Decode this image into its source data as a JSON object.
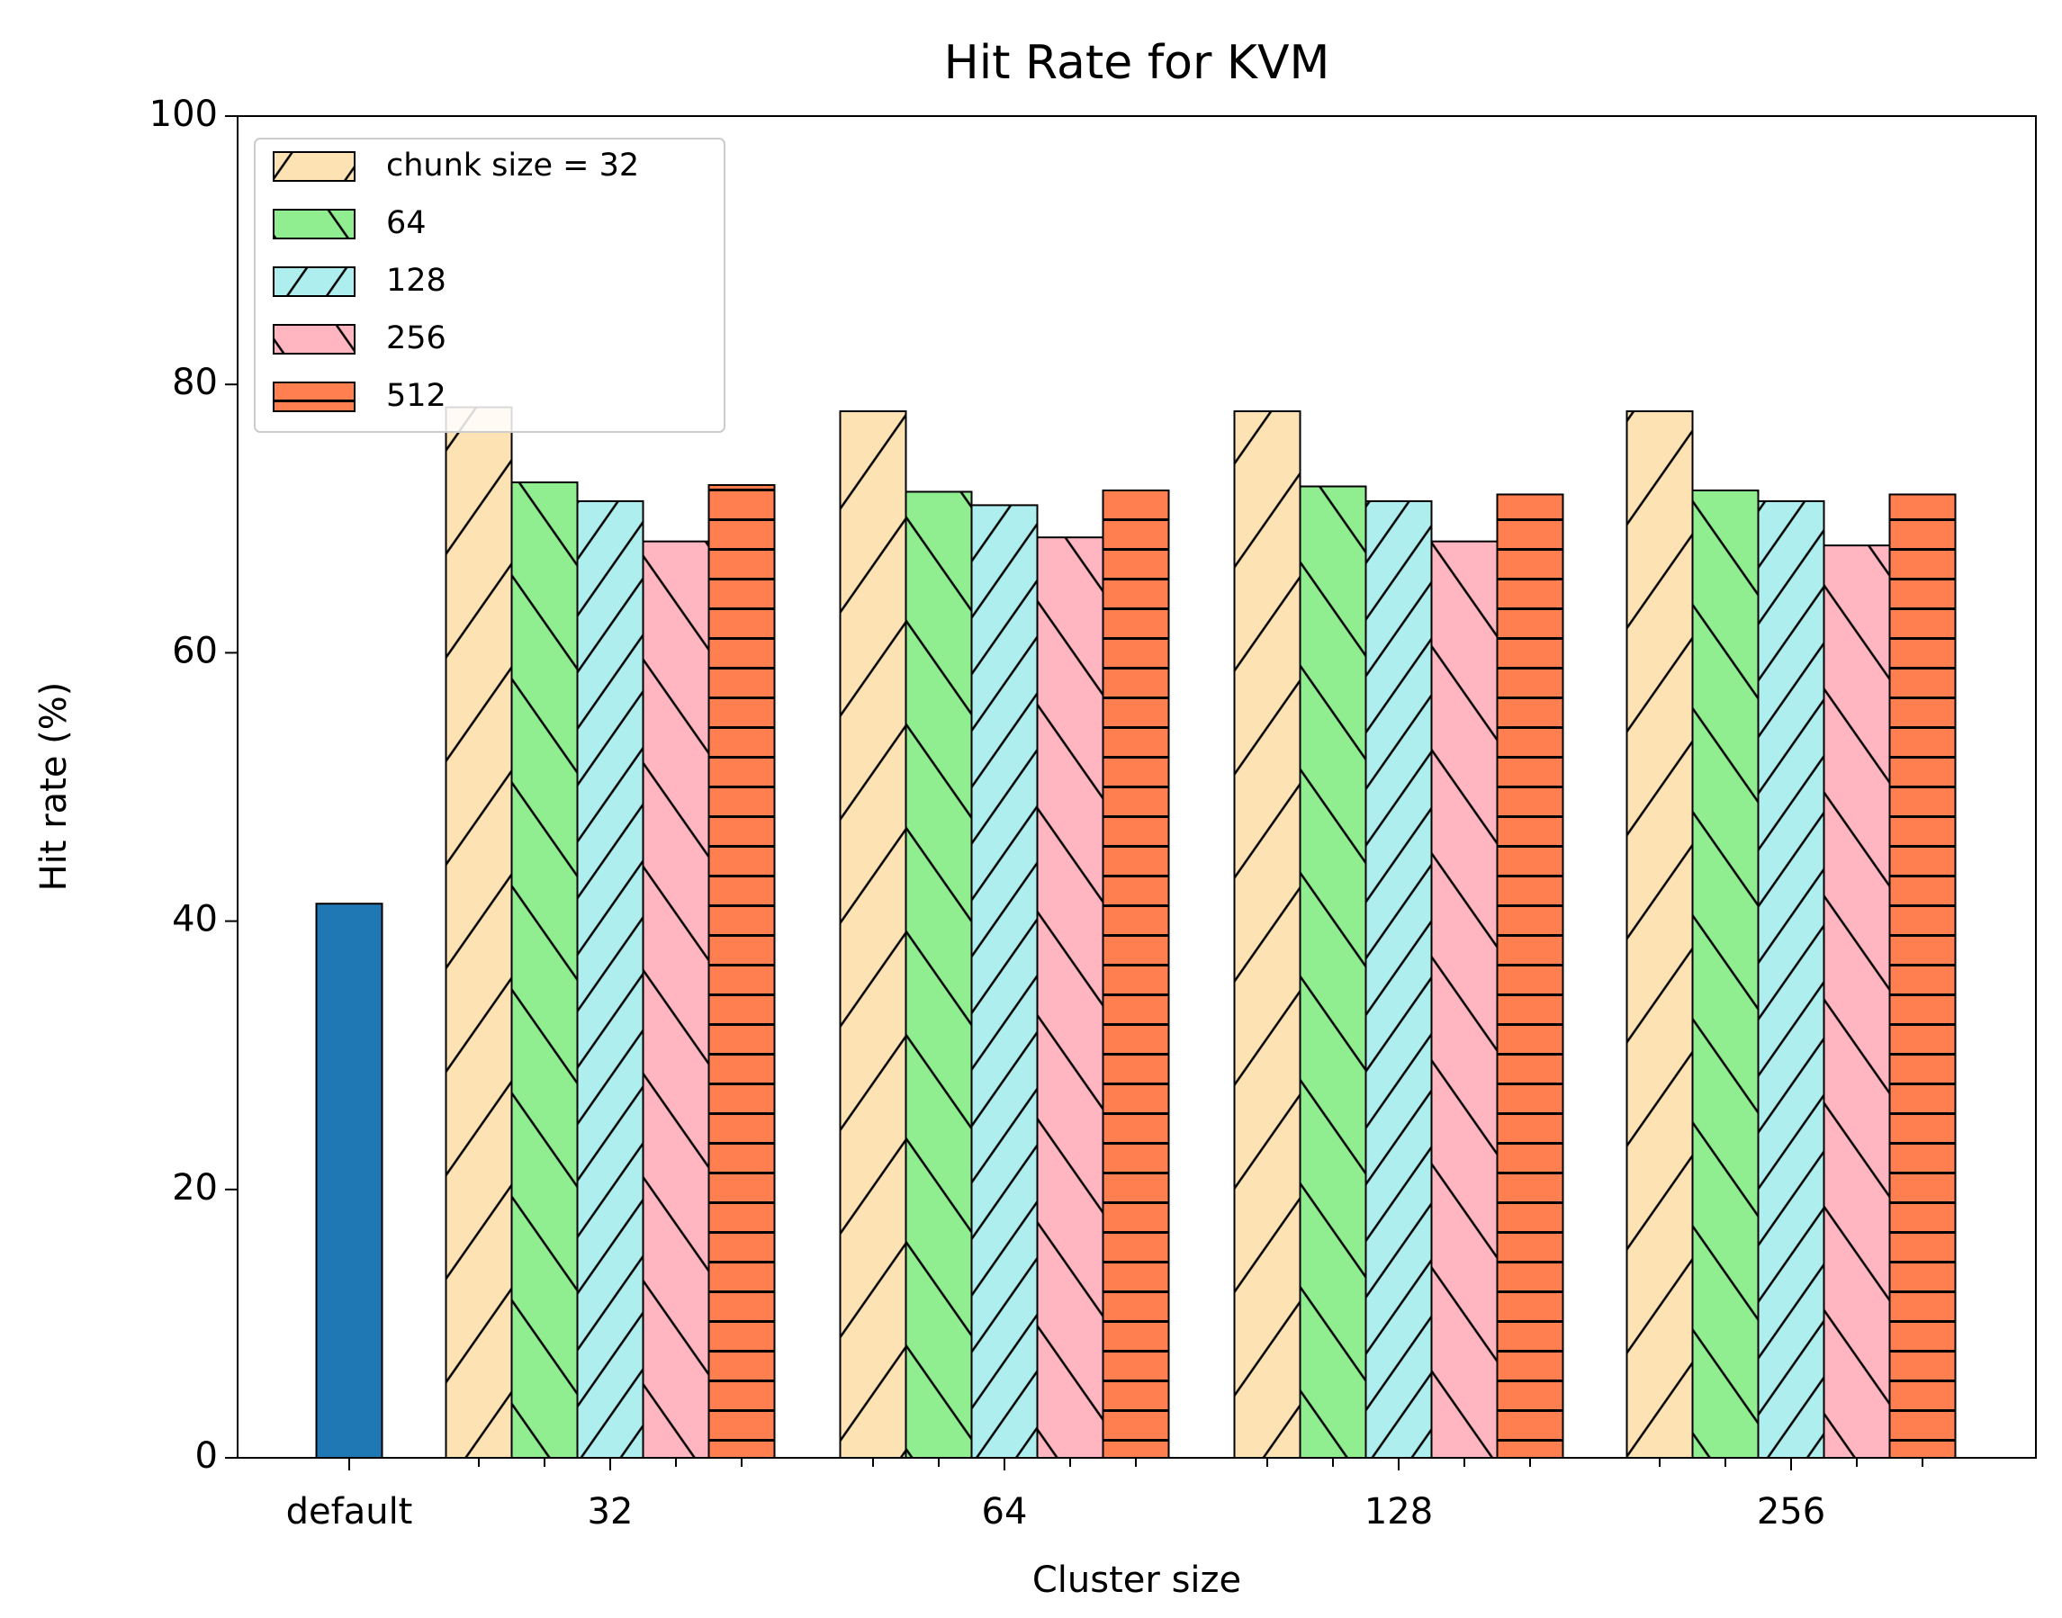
{
  "chart_data": {
    "type": "bar",
    "title": "Hit Rate for KVM",
    "xlabel": "Cluster size",
    "ylabel": "Hit rate (%)",
    "categories": [
      "default",
      "32",
      "64",
      "128",
      "256"
    ],
    "default_value": 41.3,
    "default_color": "#1f77b4",
    "series": [
      {
        "name": "chunk size = 32",
        "color": "#fde3b3",
        "hatch": "/",
        "values": [
          null,
          78.3,
          78.0,
          78.0,
          78.0
        ]
      },
      {
        "name": "64",
        "color": "#90ee90",
        "hatch": "\\",
        "values": [
          null,
          72.7,
          72.0,
          72.4,
          72.1
        ]
      },
      {
        "name": "128",
        "color": "#afeeee",
        "hatch": "//",
        "values": [
          null,
          71.3,
          71.0,
          71.3,
          71.3
        ]
      },
      {
        "name": "256",
        "color": "#ffb6c1",
        "hatch": "\\",
        "values": [
          null,
          68.3,
          68.6,
          68.3,
          68.0
        ]
      },
      {
        "name": "512",
        "color": "#ff7f50",
        "hatch": "-",
        "values": [
          null,
          72.5,
          72.1,
          71.8,
          71.8
        ]
      }
    ],
    "ylim": [
      0,
      100
    ],
    "yticks": [
      0,
      20,
      40,
      60,
      80,
      100
    ],
    "grid": false,
    "legend": "upper left"
  }
}
